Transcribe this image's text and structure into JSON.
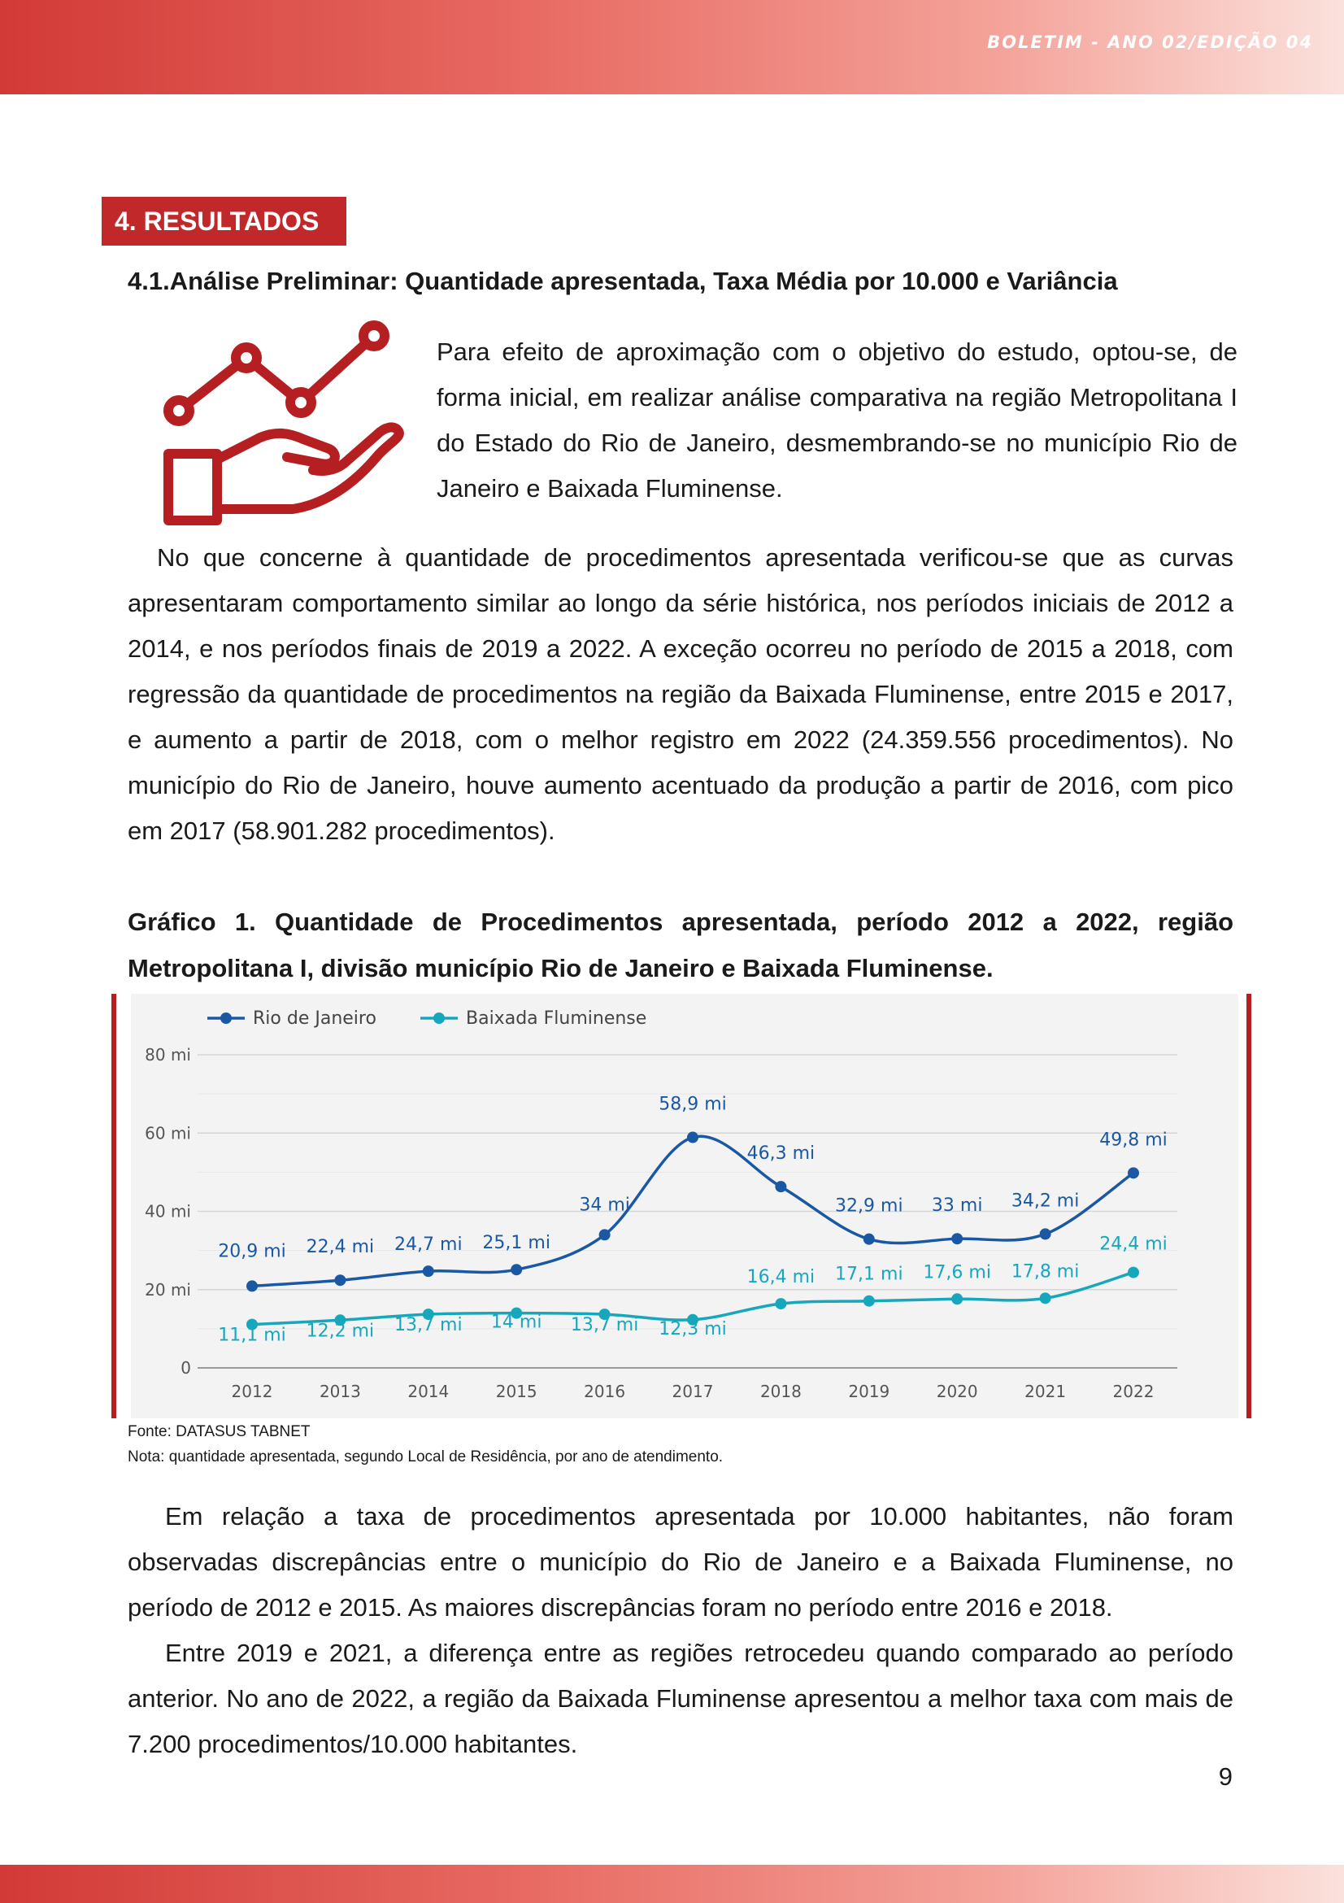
{
  "header": {
    "title": "BOLETIM - ANO 02/EDIÇÃO 04"
  },
  "section": {
    "badge": "4. RESULTADOS",
    "subheading": "4.1.Análise Preliminar: Quantidade apresentada, Taxa Média por 10.000 e Variância"
  },
  "icon": {
    "name": "chart-hand-icon",
    "color": "#b51f22"
  },
  "paragraphs": {
    "intro": "Para efeito de aproximação com o objetivo do estudo, optou-se, de forma inicial, em realizar análise comparativa na região Metropolitana I do Estado do Rio de Janeiro, desmembrando-se no município Rio de Janeiro e Baixada Fluminense.",
    "p1": "No que concerne à quantidade de procedimentos apresentada verificou-se que as curvas apresentaram comportamento similar ao longo da série histórica, nos períodos iniciais de 2012 a 2014, e nos períodos finais de 2019 a 2022. A exceção ocorreu no período de 2015 a 2018, com regressão da quantidade de procedimentos na região da Baixada Fluminense, entre 2015 e 2017, e aumento a partir de 2018, com o melhor registro em 2022 (24.359.556 procedimentos). No município do Rio de Janeiro, houve aumento acentuado da produção a partir de 2016, com pico em 2017 (58.901.282 procedimentos).",
    "p2": "Em relação a taxa de procedimentos apresentada por 10.000 habitantes, não foram observadas discrepâncias entre o município do Rio de Janeiro e a Baixada Fluminense, no período de 2012 e 2015. As maiores discrepâncias foram no período entre 2016 e 2018.",
    "p3": "Entre 2019 e 2021, a diferença entre as regiões retrocedeu quando comparado ao período anterior. No ano de 2022, a região da Baixada Fluminense apresentou a melhor taxa com mais de 7.200 procedimentos/10.000 habitantes."
  },
  "figure": {
    "caption": "Gráfico 1. Quantidade de Procedimentos apresentada, período 2012 a 2022, região Metropolitana I, divisão município Rio de Janeiro e Baixada Fluminense.",
    "source": "Fonte: DATASUS TABNET",
    "note": "Nota: quantidade apresentada, segundo Local de Residência, por ano de atendimento."
  },
  "chart_data": {
    "type": "line",
    "x": [
      "2012",
      "2013",
      "2014",
      "2015",
      "2016",
      "2017",
      "2018",
      "2019",
      "2020",
      "2021",
      "2022"
    ],
    "y_ticks": [
      0,
      20,
      40,
      60,
      80
    ],
    "y_tick_labels": [
      "0",
      "20 mi",
      "40 mi",
      "60 mi",
      "80 mi"
    ],
    "ylim": [
      0,
      80
    ],
    "grid": true,
    "legend_position": "top-left",
    "series": [
      {
        "name": "Rio de Janeiro",
        "color": "#1a58a3",
        "values": [
          20.9,
          22.4,
          24.7,
          25.1,
          34,
          58.9,
          46.3,
          32.9,
          33,
          34.2,
          49.8
        ],
        "labels": [
          "20,9 mi",
          "22,4 mi",
          "24,7 mi",
          "25,1 mi",
          "34 mi",
          "58,9 mi",
          "46,3 mi",
          "32,9 mi",
          "33 mi",
          "34,2 mi",
          "49,8 mi"
        ]
      },
      {
        "name": "Baixada Fluminense",
        "color": "#17a7bd",
        "values": [
          11.1,
          12.2,
          13.7,
          14,
          13.7,
          12.3,
          16.4,
          17.1,
          17.6,
          17.8,
          24.4
        ],
        "labels": [
          "11,1 mi",
          "12,2 mi",
          "13,7 mi",
          "14 mi",
          "13,7 mi",
          "12,3 mi",
          "16,4 mi",
          "17,1 mi",
          "17,6 mi",
          "17,8 mi",
          "24,4 mi"
        ]
      }
    ]
  },
  "page": {
    "number": "9"
  }
}
